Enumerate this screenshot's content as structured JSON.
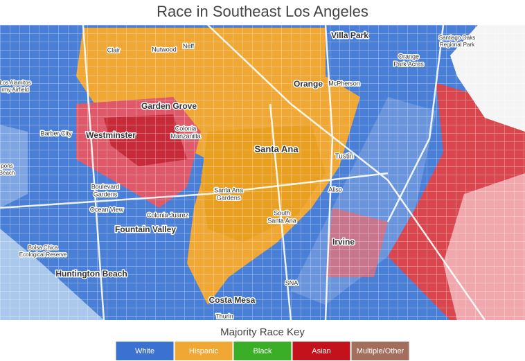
{
  "title": "Race in Southeast Los Angeles",
  "map": {
    "places": [
      {
        "lines": [
          "Villa Park"
        ]
      },
      {
        "lines": [
          "Clair"
        ]
      },
      {
        "lines": [
          "Nutwood"
        ]
      },
      {
        "lines": [
          "Neff"
        ]
      },
      {
        "lines": [
          "Santiago Oaks",
          "Regional Park"
        ]
      },
      {
        "lines": [
          "Orange",
          "Park Acres"
        ]
      },
      {
        "lines": [
          "Orange"
        ]
      },
      {
        "lines": [
          "McPherson"
        ]
      },
      {
        "lines": [
          "Los Alamitos",
          "rmy Airfield"
        ]
      },
      {
        "lines": [
          "Garden Grove"
        ]
      },
      {
        "lines": [
          "Barber City"
        ]
      },
      {
        "lines": [
          "Westminster"
        ]
      },
      {
        "lines": [
          "Colonia",
          "Manzanilla"
        ]
      },
      {
        "lines": [
          "Santa Ana"
        ]
      },
      {
        "lines": [
          "Tustin"
        ]
      },
      {
        "lines": [
          "pons",
          "Beach"
        ]
      },
      {
        "lines": [
          "Boulevard",
          "Gardens"
        ]
      },
      {
        "lines": [
          "Santa Ana",
          "Gardens"
        ]
      },
      {
        "lines": [
          "Aliso"
        ]
      },
      {
        "lines": [
          "Ocean View"
        ]
      },
      {
        "lines": [
          "Colonia Juarez"
        ]
      },
      {
        "lines": [
          "South",
          "Santa Ana"
        ]
      },
      {
        "lines": [
          "Fountain Valley"
        ]
      },
      {
        "lines": [
          "Bolsa Chica",
          "Ecological Reserve"
        ]
      },
      {
        "lines": [
          "Irvine"
        ]
      },
      {
        "lines": [
          "Huntington Beach"
        ]
      },
      {
        "lines": [
          "SNA"
        ]
      },
      {
        "lines": [
          "Costa Mesa"
        ]
      },
      {
        "lines": [
          "Thurin"
        ]
      }
    ]
  },
  "legend": {
    "title": "Majority Race Key",
    "items": [
      {
        "label": "White",
        "color": "#3b72d2"
      },
      {
        "label": "Hispanic",
        "color": "#f0a733"
      },
      {
        "label": "Black",
        "color": "#3aae27"
      },
      {
        "label": "Asian",
        "color": "#c3121c"
      },
      {
        "label": "Multiple/Other",
        "color": "#a36e5c"
      }
    ]
  }
}
